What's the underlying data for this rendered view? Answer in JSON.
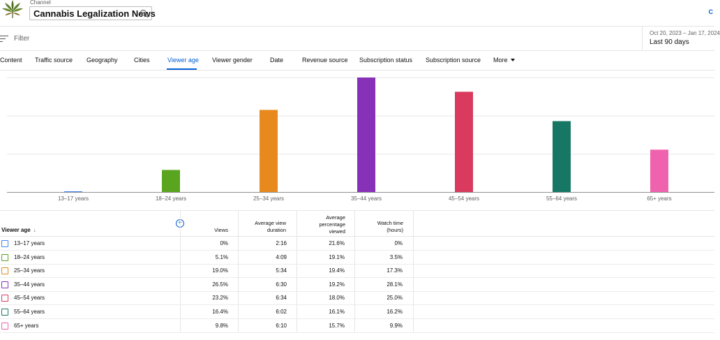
{
  "header": {
    "channel_label": "Channel",
    "channel_name": "Cannabis Legalization News",
    "top_right_text": "C"
  },
  "filter": {
    "placeholder": "Filter",
    "date_range": "Oct 20, 2023 – Jan 17, 2024",
    "date_label": "Last 90 days"
  },
  "tabs": [
    {
      "label": "Content",
      "active": false
    },
    {
      "label": "Traffic source",
      "active": false
    },
    {
      "label": "Geography",
      "active": false
    },
    {
      "label": "Cities",
      "active": false
    },
    {
      "label": "Viewer age",
      "active": true
    },
    {
      "label": "Viewer gender",
      "active": false
    },
    {
      "label": "Date",
      "active": false
    },
    {
      "label": "Revenue source",
      "active": false
    },
    {
      "label": "Subscription status",
      "active": false
    },
    {
      "label": "Subscription source",
      "active": false
    },
    {
      "label": "More",
      "active": false
    }
  ],
  "chart_data": {
    "type": "bar",
    "categories": [
      "13–17 years",
      "18–24 years",
      "25–34 years",
      "35–44 years",
      "45–54 years",
      "55–64 years",
      "65+ years"
    ],
    "values": [
      0,
      5.1,
      19.0,
      26.5,
      23.2,
      16.4,
      9.8
    ],
    "colors": [
      "#4285f4",
      "#5aa51f",
      "#e8891d",
      "#8731b8",
      "#d93a5e",
      "#167765",
      "#ef62ad"
    ],
    "ylim": [
      0,
      26.5
    ],
    "grid": true,
    "title": "",
    "xlabel": "",
    "ylabel": ""
  },
  "table": {
    "columns": {
      "first": "Viewer age",
      "views": "Views",
      "avg_view_duration": "Average view duration",
      "avg_pct_viewed": "Average percentage viewed",
      "watch_time": "Watch time (hours)"
    },
    "rows": [
      {
        "label": "13–17 years",
        "views": "0%",
        "duration": "2:16",
        "pct": "21.6%",
        "watch": "0%",
        "color": "#4285f4"
      },
      {
        "label": "18–24 years",
        "views": "5.1%",
        "duration": "4:09",
        "pct": "19.1%",
        "watch": "3.5%",
        "color": "#5aa51f"
      },
      {
        "label": "25–34 years",
        "views": "19.0%",
        "duration": "5:34",
        "pct": "19.4%",
        "watch": "17.3%",
        "color": "#e8891d"
      },
      {
        "label": "35–44 years",
        "views": "26.5%",
        "duration": "6:30",
        "pct": "19.2%",
        "watch": "28.1%",
        "color": "#8731b8"
      },
      {
        "label": "45–54 years",
        "views": "23.2%",
        "duration": "6:34",
        "pct": "18.0%",
        "watch": "25.0%",
        "color": "#d93a5e"
      },
      {
        "label": "55–64 years",
        "views": "16.4%",
        "duration": "6:02",
        "pct": "16.1%",
        "watch": "16.2%",
        "color": "#167765"
      },
      {
        "label": "65+ years",
        "views": "9.8%",
        "duration": "6:10",
        "pct": "15.7%",
        "watch": "9.9%",
        "color": "#ef62ad"
      }
    ]
  },
  "icons": {
    "logo": "cannabis-leaf-logo",
    "search": "search-icon",
    "filter": "filter-icon",
    "add_column": "add-column-icon",
    "sort": "sort-down-icon"
  }
}
